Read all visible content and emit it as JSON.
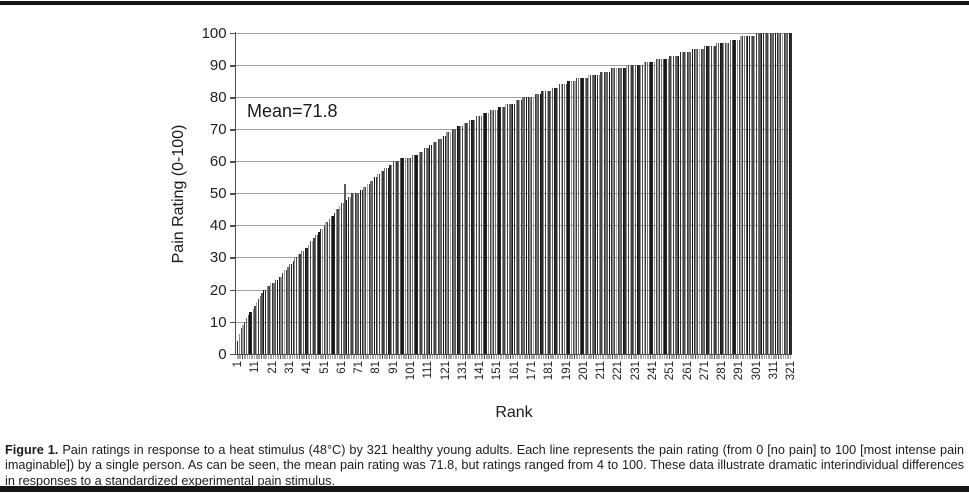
{
  "figure": {
    "caption_label": "Figure 1.",
    "caption_text": "Pain ratings in response to a heat stimulus (48°C) by 321 healthy young adults. Each line represents the pain rating (from 0 [no pain] to 100 [most intense pain imaginable]) by a single person. As can be seen, the mean pain rating was 71.8, but ratings ranged from 4 to 100. These data illustrate dramatic interindividual differences in responses to a standardized experimental pain stimulus."
  },
  "chart_data": {
    "type": "bar",
    "title": "",
    "xlabel": "Rank",
    "ylabel": "Pain Rating (0-100)",
    "annotation": "Mean=71.8",
    "mean_shown": 71.8,
    "min_value": 4,
    "max_value": 100,
    "n_bars": 321,
    "ylim": [
      0,
      100
    ],
    "grid": "horizontal",
    "legend": "none",
    "y_ticks": [
      0,
      10,
      20,
      30,
      40,
      50,
      60,
      70,
      80,
      90,
      100
    ],
    "x_tick_labels": [
      "1",
      "11",
      "21",
      "31",
      "41",
      "51",
      "61",
      "71",
      "81",
      "91",
      "101",
      "111",
      "121",
      "131",
      "141",
      "151",
      "161",
      "171",
      "181",
      "191",
      "201",
      "211",
      "221",
      "231",
      "241",
      "251",
      "261",
      "271",
      "281",
      "291",
      "301",
      "311",
      "321"
    ],
    "bar_palette": [
      "#161616",
      "#3d3d3d",
      "#8c8c8c",
      "#5a5a5a",
      "#a3a3a3",
      "#2b2b2b",
      "#6f6f6f",
      "#474747"
    ],
    "values": [
      4,
      6,
      8,
      9,
      10,
      11,
      12,
      13,
      13,
      14,
      15,
      16,
      17,
      18,
      19,
      20,
      20,
      21,
      21,
      22,
      22,
      22,
      23,
      23,
      24,
      24,
      25,
      26,
      26,
      27,
      28,
      28,
      29,
      30,
      30,
      31,
      31,
      32,
      32,
      33,
      33,
      34,
      35,
      35,
      36,
      37,
      37,
      38,
      39,
      39,
      40,
      41,
      41,
      42,
      43,
      43,
      44,
      45,
      45,
      46,
      47,
      47,
      53,
      48,
      49,
      49,
      50,
      50,
      50,
      50,
      50,
      51,
      51,
      52,
      52,
      53,
      53,
      54,
      54,
      55,
      55,
      56,
      56,
      57,
      57,
      58,
      58,
      58,
      59,
      59,
      60,
      60,
      60,
      60,
      61,
      61,
      61,
      61,
      61,
      61,
      61,
      62,
      62,
      62,
      62,
      63,
      63,
      63,
      64,
      64,
      64,
      65,
      65,
      66,
      66,
      66,
      67,
      67,
      67,
      68,
      68,
      69,
      69,
      69,
      70,
      70,
      70,
      71,
      71,
      71,
      71,
      72,
      72,
      72,
      73,
      73,
      73,
      73,
      74,
      74,
      74,
      74,
      75,
      75,
      75,
      75,
      76,
      76,
      76,
      76,
      76,
      77,
      77,
      77,
      77,
      78,
      78,
      78,
      78,
      78,
      78,
      79,
      79,
      79,
      79,
      80,
      80,
      80,
      80,
      80,
      80,
      80,
      81,
      81,
      81,
      81,
      82,
      82,
      82,
      82,
      82,
      82,
      83,
      83,
      83,
      83,
      84,
      84,
      84,
      84,
      84,
      85,
      85,
      85,
      85,
      85,
      86,
      86,
      86,
      86,
      86,
      86,
      86,
      87,
      87,
      87,
      87,
      87,
      87,
      87,
      88,
      88,
      88,
      88,
      88,
      88,
      89,
      89,
      89,
      89,
      89,
      89,
      89,
      89,
      89,
      90,
      90,
      90,
      90,
      90,
      90,
      90,
      90,
      90,
      90,
      91,
      91,
      91,
      91,
      91,
      91,
      91,
      92,
      92,
      92,
      92,
      92,
      92,
      92,
      92,
      93,
      93,
      93,
      93,
      93,
      93,
      94,
      94,
      94,
      94,
      94,
      94,
      94,
      95,
      95,
      95,
      95,
      95,
      95,
      95,
      96,
      96,
      96,
      96,
      96,
      96,
      96,
      97,
      97,
      97,
      97,
      97,
      97,
      97,
      97,
      98,
      98,
      98,
      98,
      98,
      98,
      99,
      99,
      99,
      99,
      99,
      99,
      99,
      99,
      99,
      100,
      100,
      100,
      100,
      100,
      100,
      100,
      100,
      100,
      100,
      100,
      100,
      100,
      100,
      100,
      100,
      100,
      100,
      100,
      100,
      100
    ]
  }
}
